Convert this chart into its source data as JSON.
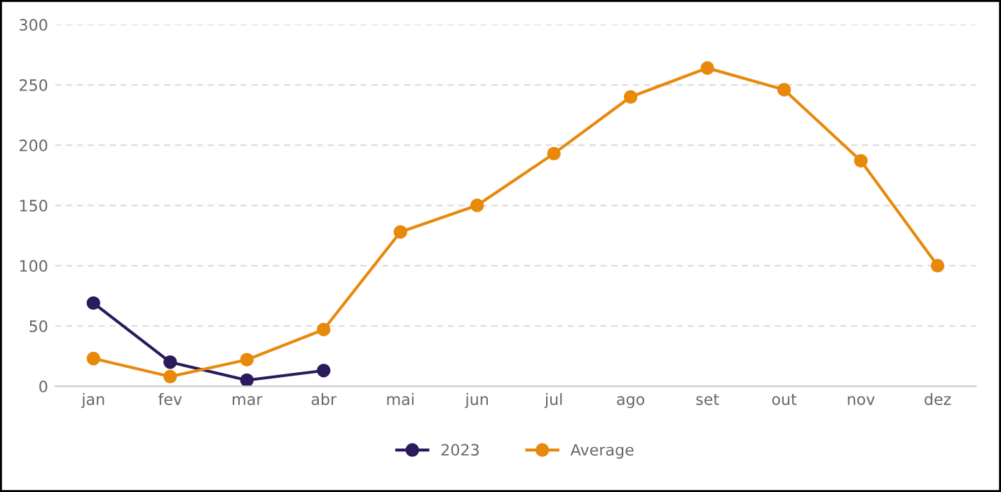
{
  "chart_data": {
    "type": "line",
    "categories": [
      "jan",
      "fev",
      "mar",
      "abr",
      "mai",
      "jun",
      "jul",
      "ago",
      "set",
      "out",
      "nov",
      "dez"
    ],
    "series": [
      {
        "name": "2023",
        "color": "#2b1a5c",
        "values": [
          69,
          20,
          5,
          13,
          null,
          null,
          null,
          null,
          null,
          null,
          null,
          null
        ]
      },
      {
        "name": "Average",
        "color": "#e8890c",
        "values": [
          23,
          8,
          22,
          47,
          128,
          150,
          193,
          240,
          264,
          246,
          187,
          100
        ]
      }
    ],
    "ylim": [
      0,
      300
    ],
    "yticks": [
      0,
      50,
      100,
      150,
      200,
      250,
      300
    ],
    "grid": "y",
    "legend": "bottom",
    "marker": "circle",
    "line_style": "solid"
  }
}
